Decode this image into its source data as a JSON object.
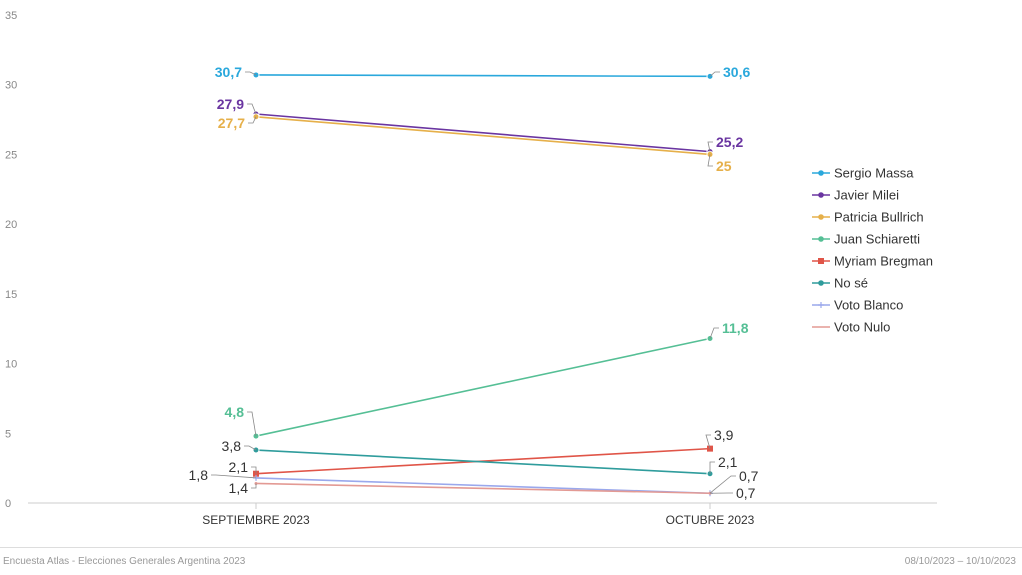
{
  "chart_data": {
    "type": "line",
    "categories": [
      "SEPTIEMBRE 2023",
      "OCTUBRE 2023"
    ],
    "ylim": [
      0,
      35
    ],
    "yticks": [
      0,
      5,
      10,
      15,
      20,
      25,
      30,
      35
    ],
    "series": [
      {
        "name": "Sergio Massa",
        "values": [
          30.7,
          30.6
        ],
        "labels": [
          "30,7",
          "30,6"
        ],
        "color": "#2aa8dc",
        "marker": "circle",
        "bold": true
      },
      {
        "name": "Javier Milei",
        "values": [
          27.9,
          25.2
        ],
        "labels": [
          "27,9",
          "25,2"
        ],
        "color": "#6a35a1",
        "marker": "circle",
        "bold": true
      },
      {
        "name": "Patricia Bullrich",
        "values": [
          27.7,
          25
        ],
        "labels": [
          "27,7",
          "25"
        ],
        "color": "#e6b04a",
        "marker": "circle",
        "bold": true
      },
      {
        "name": "Juan Schiaretti",
        "values": [
          4.8,
          11.8
        ],
        "labels": [
          "4,8",
          "11,8"
        ],
        "color": "#55bf95",
        "marker": "circle",
        "bold": true
      },
      {
        "name": "Myriam Bregman",
        "values": [
          2.1,
          3.9
        ],
        "labels": [
          "2,1",
          "3,9"
        ],
        "color": "#e05548",
        "marker": "square",
        "bold": false
      },
      {
        "name": "No sé",
        "values": [
          3.8,
          2.1
        ],
        "labels": [
          "3,8",
          "2,1"
        ],
        "color": "#2f9c9c",
        "marker": "circle",
        "bold": false
      },
      {
        "name": "Voto Blanco",
        "values": [
          1.8,
          0.7
        ],
        "labels": [
          "1,8",
          "0,7"
        ],
        "color": "#9aa8ec",
        "marker": "plus",
        "bold": false
      },
      {
        "name": "Voto Nulo",
        "values": [
          1.4,
          0.7
        ],
        "labels": [
          "1,4",
          "0,7"
        ],
        "color": "#e39a94",
        "marker": "line",
        "bold": false
      }
    ]
  },
  "footer": {
    "source": "Encuesta Atlas - Elecciones Generales Argentina 2023",
    "date_range": "08/10/2023 – 10/10/2023"
  }
}
